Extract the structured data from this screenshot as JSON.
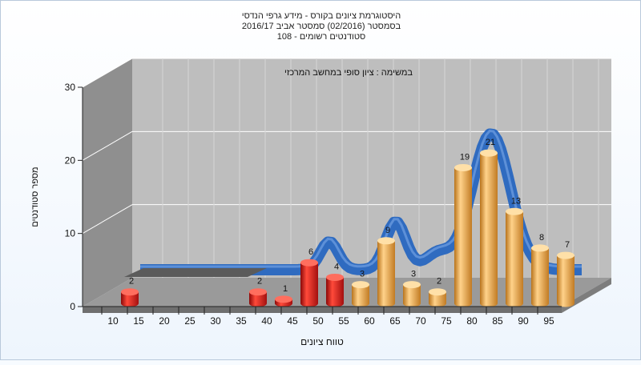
{
  "chart_data": {
    "type": "bar",
    "title_lines": [
      "היסטוגרמת ציונים בקורס - מידע גרפי הנדסי",
      "בסמסטר  (02/2016)  סמסטר אביב 2016/17",
      "סטודנטים רשומים - 108"
    ],
    "inner_title": "במשימה : ציון סופי במחשב המרכזי",
    "xlabel": "טווח ציונים",
    "ylabel": "מספר סטודנטים",
    "ylim": [
      0,
      30
    ],
    "yticks": [
      "0",
      "10",
      "20",
      "30"
    ],
    "categories": [
      "10",
      "15",
      "20",
      "25",
      "30",
      "35",
      "40",
      "45",
      "50",
      "55",
      "60",
      "65",
      "70",
      "75",
      "80",
      "85",
      "90",
      "95"
    ],
    "values": [
      2,
      0,
      0,
      0,
      0,
      2,
      1,
      6,
      4,
      3,
      9,
      3,
      2,
      19,
      21,
      13,
      8,
      7
    ],
    "value_labels": [
      "2",
      "",
      "",
      "",
      "",
      "2",
      "1",
      "6",
      "4",
      "3",
      "9",
      "3",
      "2",
      "19",
      "21",
      "13",
      "8",
      "7"
    ],
    "bar_colors": {
      "fail": "#d81c1c",
      "pass": "#e9a33f"
    },
    "fail_threshold": 55,
    "curve": {
      "color": "#2f6bc0"
    },
    "grid": true,
    "legend": "none"
  }
}
